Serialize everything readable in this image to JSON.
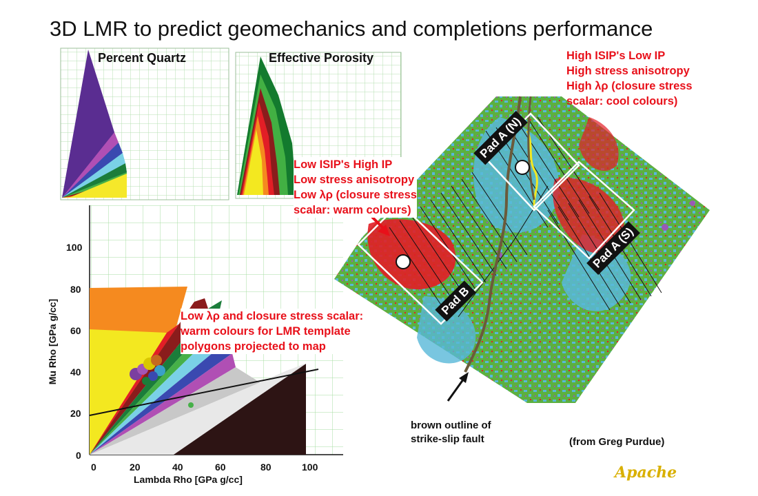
{
  "slide": {
    "title": "3D LMR to predict geomechanics and completions performance",
    "credit": "(from Greg Purdue)",
    "logo": "Apache"
  },
  "panels": {
    "quartz_title": "Percent Quartz",
    "porosity_title": "Effective Porosity"
  },
  "annotations": {
    "high_isip": [
      "High ISIP's Low IP",
      "High stress anisotropy",
      "High λρ (closure stress",
      "scalar: cool colours)"
    ],
    "low_isip": [
      "Low ISIP's High IP",
      "Low stress anisotropy",
      "Low λρ (closure stress",
      "scalar: warm colours)"
    ],
    "low_lambda": [
      "Low λρ and closure stress scalar:",
      "warm colours for LMR template",
      "polygons projected to map"
    ],
    "fault": [
      "brown outline of",
      "strike-slip fault"
    ]
  },
  "map": {
    "pads": [
      "Pad A (N)",
      "Pad A (S)",
      "Pad B"
    ]
  },
  "crossplot": {
    "xlabel": "Lambda Rho [GPa g/cc]",
    "ylabel": "Mu Rho [GPa g/cc]",
    "xticks": [
      "0",
      "20",
      "40",
      "60",
      "80",
      "100"
    ],
    "yticks": [
      "0",
      "20",
      "40",
      "60",
      "80",
      "100"
    ]
  },
  "colors": {
    "annotation_red": "#e8101a",
    "fault_brown": "#6b5a3a",
    "map_green": "#5cb040",
    "map_cyan": "#58b8d8",
    "logo_gold": "#d9b000"
  }
}
